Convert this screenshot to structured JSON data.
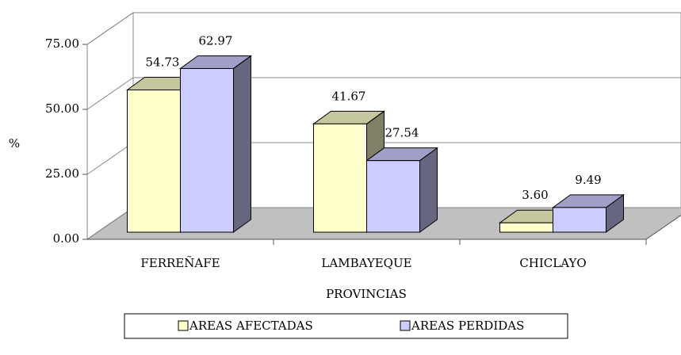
{
  "chart_data": {
    "type": "bar3d",
    "x_label": "PROVINCIAS",
    "y_label": "%",
    "categories": [
      "FERREÑAFE",
      "LAMBAYEQUE",
      "CHICLAYO"
    ],
    "series": [
      {
        "name": "AREAS AFECTADAS",
        "color": "#ffffcc",
        "values": [
          54.73,
          41.67,
          3.6
        ],
        "value_labels": [
          "54.73",
          "41.67",
          "3.60"
        ]
      },
      {
        "name": "AREAS PERDIDAS",
        "color": "#ccccff",
        "values": [
          62.97,
          27.54,
          9.49
        ],
        "value_labels": [
          "62.97",
          "27.54",
          "9.49"
        ]
      }
    ],
    "ylim": [
      0,
      75
    ],
    "yticks": [
      {
        "value": 0,
        "label": "0.00"
      },
      {
        "value": 25,
        "label": "25.00"
      },
      {
        "value": 50,
        "label": "50.00"
      },
      {
        "value": 75,
        "label": "75.00"
      }
    ],
    "grid": true,
    "legend": "bottom"
  }
}
